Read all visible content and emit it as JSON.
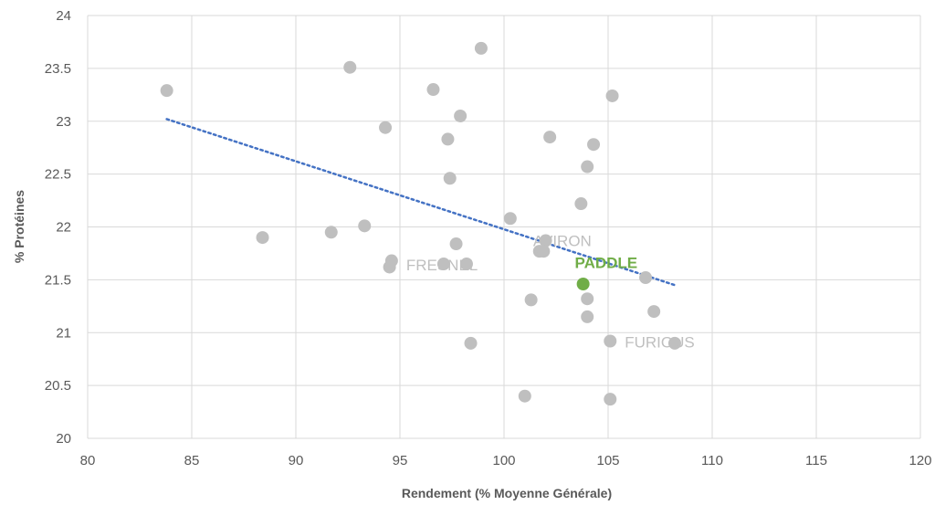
{
  "chart_data": {
    "type": "scatter",
    "title": "",
    "xlabel": "Rendement (% Moyenne Générale)",
    "ylabel": "% Protéines",
    "xlim": [
      80,
      120
    ],
    "ylim": [
      20,
      24
    ],
    "x_ticks": [
      "80",
      "85",
      "90",
      "95",
      "100",
      "105",
      "110",
      "115",
      "120"
    ],
    "y_ticks": [
      "20",
      "20.5",
      "21",
      "21.5",
      "22",
      "22.5",
      "23",
      "23.5",
      "24"
    ],
    "grid": "vertical and horizontal major gridlines",
    "legend": "none",
    "colors": {
      "points": "#BFBFBF",
      "highlight": "#70AD47",
      "trendline": "#4472C4",
      "grid": "#D9D9D9",
      "text": "#595959"
    },
    "series": [
      {
        "values": [
          [
            83.8,
            23.29
          ],
          [
            92.6,
            23.51
          ],
          [
            98.9,
            23.69
          ],
          [
            96.6,
            23.3
          ],
          [
            105.2,
            23.24
          ],
          [
            94.3,
            22.94
          ],
          [
            97.9,
            23.05
          ],
          [
            97.3,
            22.83
          ],
          [
            102.2,
            22.85
          ],
          [
            104.3,
            22.78
          ],
          [
            104.0,
            22.57
          ],
          [
            97.4,
            22.46
          ],
          [
            103.7,
            22.22
          ],
          [
            100.3,
            22.08
          ],
          [
            88.4,
            21.9
          ],
          [
            91.7,
            21.95
          ],
          [
            93.3,
            22.01
          ],
          [
            97.7,
            21.84
          ],
          [
            102.0,
            21.87
          ],
          [
            101.7,
            21.77
          ],
          [
            101.9,
            21.77
          ],
          [
            94.6,
            21.68
          ],
          [
            94.5,
            21.62
          ],
          [
            97.1,
            21.65
          ],
          [
            98.2,
            21.65
          ],
          [
            106.8,
            21.52
          ],
          [
            101.3,
            21.31
          ],
          [
            104.0,
            21.32
          ],
          [
            104.0,
            21.15
          ],
          [
            107.2,
            21.2
          ],
          [
            98.4,
            20.9
          ],
          [
            105.1,
            20.92
          ],
          [
            108.2,
            20.9
          ],
          [
            101.0,
            20.4
          ],
          [
            105.1,
            20.37
          ]
        ]
      },
      {
        "values": [
          [
            103.8,
            21.46
          ]
        ]
      }
    ],
    "trendline": {
      "style": "dotted",
      "from": [
        83.8,
        23.02
      ],
      "to": [
        108.2,
        21.45
      ]
    },
    "annotations": [
      {
        "text": "AVIRON",
        "x": 101.4,
        "y": 21.82,
        "color": "#BFBFBF",
        "bold": false
      },
      {
        "text": "FRESNEL",
        "x": 95.3,
        "y": 21.59,
        "color": "#BFBFBF",
        "bold": false
      },
      {
        "text": "PADDLE",
        "x": 103.4,
        "y": 21.61,
        "color": "#70AD47",
        "bold": true
      },
      {
        "text": "FURIOUS",
        "x": 105.8,
        "y": 20.86,
        "color": "#BFBFBF",
        "bold": false
      }
    ]
  }
}
